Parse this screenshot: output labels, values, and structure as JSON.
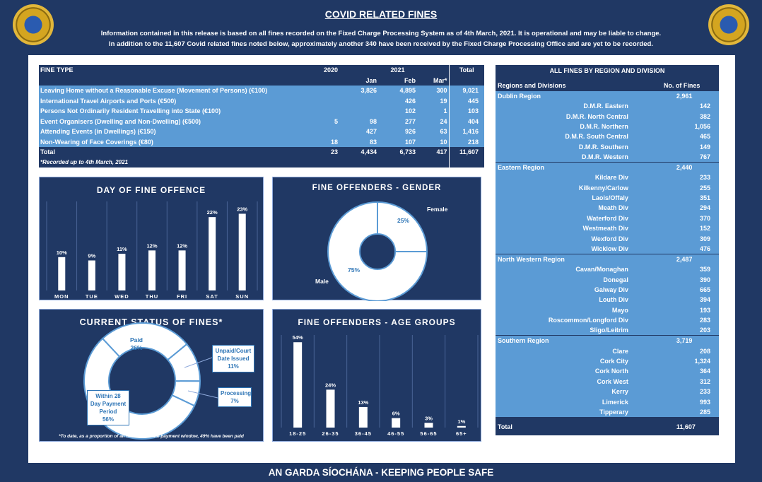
{
  "header": {
    "title": "COVID RELATED FINES",
    "line1": "Information contained in this release is based on all fines recorded on the Fixed Charge Processing System as of 4th March, 2021.  It is operational and may be liable to change.",
    "line2": "In addition to the 11,607 Covid related fines noted below, approximately another 340 have been received by the Fixed Charge Processing Office and are yet to be recorded."
  },
  "footer": "AN GARDA SÍOCHÁNA - KEEPING PEOPLE SAFE",
  "colors": {
    "navy": "#203864",
    "light_blue": "#5b9bd5",
    "text_blue": "#2e75b6"
  },
  "fines_table": {
    "headers": {
      "type": "FINE TYPE",
      "y2020": "2020",
      "y2021": "2021",
      "jan": "Jan",
      "feb": "Feb",
      "mar": "Mar*",
      "total": "Total"
    },
    "rows": [
      {
        "type": "Leaving Home without a Reasonable Excuse (Movement of Persons) (€100)",
        "y2020": "",
        "jan": "3,826",
        "feb": "4,895",
        "mar": "300",
        "total": "9,021"
      },
      {
        "type": "International Travel Airports and Ports (€500)",
        "y2020": "",
        "jan": "",
        "feb": "426",
        "mar": "19",
        "total": "445"
      },
      {
        "type": "Persons Not Ordinarily Resident Travelling into State (€100)",
        "y2020": "",
        "jan": "",
        "feb": "102",
        "mar": "1",
        "total": "103"
      },
      {
        "type": "Event Organisers (Dwelling and Non-Dwelling) (€500)",
        "y2020": "5",
        "jan": "98",
        "feb": "277",
        "mar": "24",
        "total": "404"
      },
      {
        "type": "Attending Events (in Dwellings) (€150)",
        "y2020": "",
        "jan": "427",
        "feb": "926",
        "mar": "63",
        "total": "1,416"
      },
      {
        "type": "Non-Wearing of Face Coverings (€80)",
        "y2020": "18",
        "jan": "83",
        "feb": "107",
        "mar": "10",
        "total": "218"
      }
    ],
    "total": {
      "type": "Total",
      "y2020": "23",
      "jan": "4,434",
      "feb": "6,733",
      "mar": "417",
      "total": "11,607"
    },
    "note": "*Recorded up to 4th March, 2021"
  },
  "regions_table": {
    "title": "ALL FINES BY REGION AND DIVISION",
    "col1": "Regions and Divisions",
    "col2": "No. of Fines",
    "regions": [
      {
        "name": "Dublin Region",
        "total": "2,961",
        "divisions": [
          [
            "D.M.R. Eastern",
            "142"
          ],
          [
            "D.M.R. North Central",
            "382"
          ],
          [
            "D.M.R. Northern",
            "1,056"
          ],
          [
            "D.M.R. South Central",
            "465"
          ],
          [
            "D.M.R. Southern",
            "149"
          ],
          [
            "D.M.R. Western",
            "767"
          ]
        ]
      },
      {
        "name": "Eastern Region",
        "total": "2,440",
        "divisions": [
          [
            "Kildare Div",
            "233"
          ],
          [
            "Kilkenny/Carlow",
            "255"
          ],
          [
            "Laois/Offaly",
            "351"
          ],
          [
            "Meath Div",
            "294"
          ],
          [
            "Waterford Div",
            "370"
          ],
          [
            "Westmeath Div",
            "152"
          ],
          [
            "Wexford Div",
            "309"
          ],
          [
            "Wicklow Div",
            "476"
          ]
        ]
      },
      {
        "name": "North Western Region",
        "total": "2,487",
        "divisions": [
          [
            "Cavan/Monaghan",
            "359"
          ],
          [
            "Donegal",
            "390"
          ],
          [
            "Galway Div",
            "665"
          ],
          [
            "Louth Div",
            "394"
          ],
          [
            "Mayo",
            "193"
          ],
          [
            "Roscommon/Longford Div",
            "283"
          ],
          [
            "Sligo/Leitrim",
            "203"
          ]
        ]
      },
      {
        "name": "Southern Region",
        "total": "3,719",
        "divisions": [
          [
            "Clare",
            "208"
          ],
          [
            "Cork City",
            "1,324"
          ],
          [
            "Cork North",
            "364"
          ],
          [
            "Cork West",
            "312"
          ],
          [
            "Kerry",
            "233"
          ],
          [
            "Limerick",
            "993"
          ],
          [
            "Tipperary",
            "285"
          ]
        ]
      }
    ],
    "total_label": "Total",
    "total": "11,607"
  },
  "chart_data": [
    {
      "type": "bar",
      "title": "DAY OF FINE OFFENCE",
      "categories": [
        "MON",
        "TUE",
        "WED",
        "THU",
        "FRI",
        "SAT",
        "SUN"
      ],
      "values": [
        10,
        9,
        11,
        12,
        12,
        22,
        23
      ],
      "labels": [
        "10%",
        "9%",
        "11%",
        "12%",
        "12%",
        "22%",
        "23%"
      ],
      "unit": "%",
      "ylim": [
        0,
        25
      ],
      "grid": "vertical"
    },
    {
      "type": "pie",
      "title": "FINE OFFENDERS - GENDER",
      "categories": [
        "Female",
        "Male"
      ],
      "values": [
        25,
        75
      ],
      "labels": [
        "25%",
        "75%"
      ],
      "donut": true
    },
    {
      "type": "pie",
      "title": "CURRENT STATUS OF FINES*",
      "categories": [
        "Paid",
        "Unpaid/Court Date Issued",
        "Processing",
        "Within 28 Day Payment Period"
      ],
      "values": [
        26,
        11,
        7,
        56
      ],
      "labels": [
        "26%",
        "11%",
        "7%",
        "56%"
      ],
      "donut": true,
      "note": "*To date, as a proportion of all fines within the payment window, 49% have been paid"
    },
    {
      "type": "bar",
      "title": "FINE OFFENDERS - AGE GROUPS",
      "categories": [
        "18-25",
        "26-35",
        "36-45",
        "46-55",
        "56-65",
        "65+"
      ],
      "values": [
        54,
        24,
        13,
        6,
        3,
        1
      ],
      "labels": [
        "54%",
        "24%",
        "13%",
        "6%",
        "3%",
        "1%"
      ],
      "unit": "%",
      "ylim": [
        0,
        55
      ],
      "grid": "vertical"
    }
  ]
}
